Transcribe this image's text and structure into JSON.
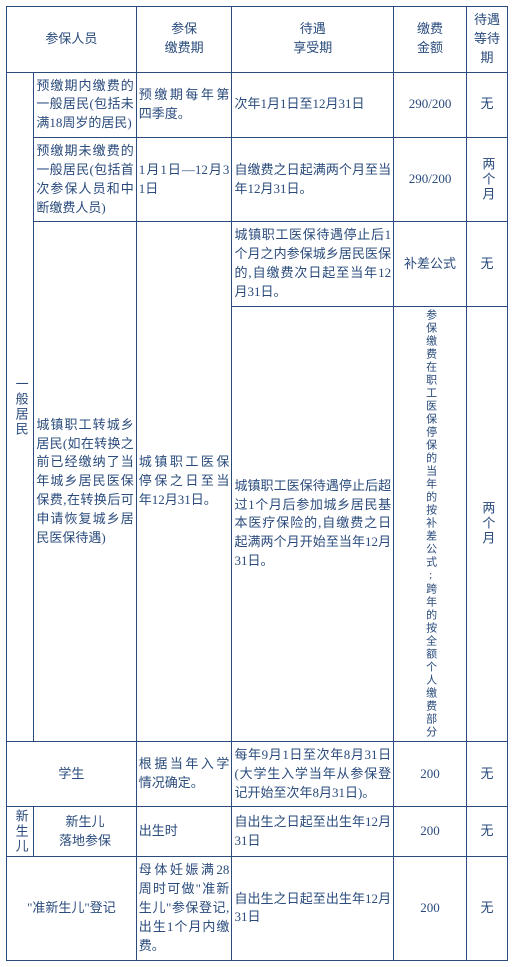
{
  "colors": {
    "border": "#2a4b7c",
    "text": "#2a4b7c",
    "background": "#ffffff"
  },
  "font": {
    "family": "SimSun",
    "size_pt": 10
  },
  "headers": {
    "col1": "参保人员",
    "col2": "参保\n缴费期",
    "col3": "待遇\n享受期",
    "col4": "缴费\n金额",
    "col5": "待遇\n等待期"
  },
  "groups": {
    "g1": "一般居民",
    "g2": "新生儿"
  },
  "rows": [
    {
      "person": "预缴期内缴费的一般居民(包括未满18周岁的居民)",
      "period": "预缴期每年第四季度。",
      "benefit": "次年1月1日至12月31日",
      "amount": "290/200",
      "wait": "无"
    },
    {
      "person": "预缴期未缴费的一般居民(包括首次参保人员和中断缴费人员)",
      "period": "1月1日—12月31日",
      "benefit": "自缴费之日起满两个月至当年12月31日。",
      "amount": "290/200",
      "wait": "两个月"
    },
    {
      "person": "城镇职工转城乡居民(如在转换之前已经缴纳了当年城乡居民医保保费,在转换后可申请恢复城乡居民医保待遇)",
      "period": "城镇职工医保停保之日至当年12月31日。",
      "benefit_a": "城镇职工医保待遇停止后1个月之内参保城乡居民医保的,自缴费次日起至当年12月31日。",
      "amount_a": "补差公式",
      "wait_a": "无",
      "benefit_b": "城镇职工医保待遇停止后超过1个月后参加城乡居民基本医疗保险的,自缴费之日起满两个月开始至当年12月31日。",
      "amount_b": "参保缴费在职工医保停保的当年的按补差公式;跨年的按全额个人缴费部分",
      "wait_b": "两个月"
    },
    {
      "person": "学生",
      "period": "根据当年入学情况确定。",
      "benefit": "每年9月1日至次年8月31日(大学生入学当年从参保登记开始至次年8月31日)。",
      "amount": "200",
      "wait": "无"
    },
    {
      "person": "新生儿\n落地参保",
      "period": "出生时",
      "benefit": "自出生之日起至出生年12月31日",
      "amount": "200",
      "wait": "无"
    },
    {
      "person": "\"准新生儿\"登记",
      "period": "母体妊娠满28周时可做\"准新生儿\"参保登记,出生1个月内缴费。",
      "benefit": "自出生之日起至出生年12月31日",
      "amount": "200",
      "wait": "无"
    }
  ]
}
